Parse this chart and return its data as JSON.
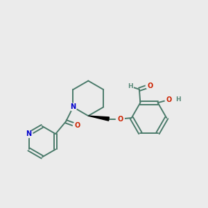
{
  "bg_color": "#ebebeb",
  "bond_color": "#4a7a6a",
  "bond_width": 1.4,
  "N_color": "#0000cc",
  "O_color": "#cc2200",
  "H_color": "#5a8a7a",
  "figsize": [
    3.0,
    3.0
  ],
  "dpi": 100,
  "xlim": [
    0,
    10
  ],
  "ylim": [
    0,
    10
  ]
}
